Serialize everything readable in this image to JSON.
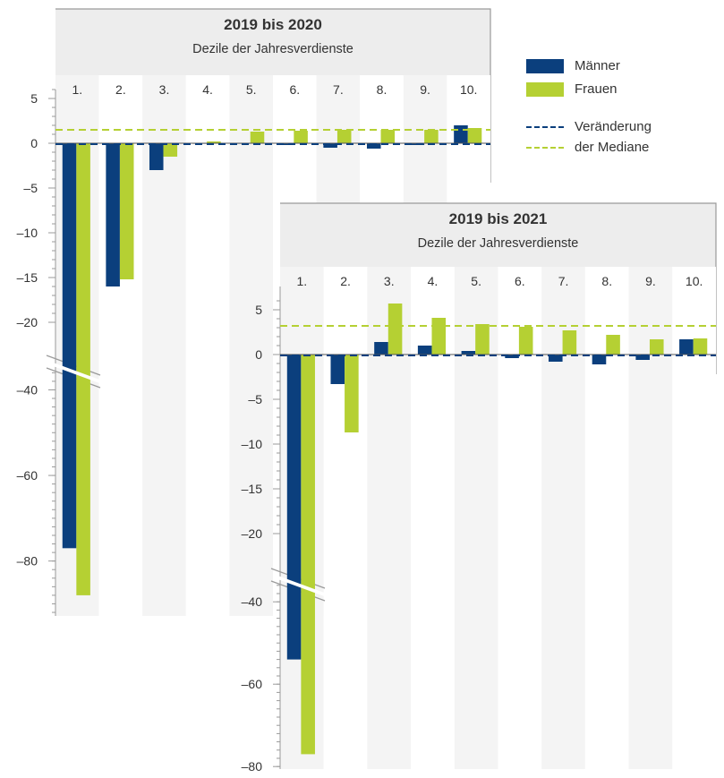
{
  "legend": {
    "men": "Männer",
    "women": "Frauen",
    "median_line1": "Veränderung",
    "median_line2": "der Mediane"
  },
  "colors": {
    "men": "#0b3f7d",
    "women": "#b5d033",
    "median_men": "#0b3f7d",
    "median_women": "#b5d033",
    "panel_bg": "#ededed",
    "band": "#f4f4f4"
  },
  "chart_data": [
    {
      "type": "bar",
      "title": "2019 bis 2020",
      "subtitle": "Dezile der Jahresverdienste",
      "categories": [
        "1.",
        "2.",
        "3.",
        "4.",
        "5.",
        "6.",
        "7.",
        "8.",
        "9.",
        "10."
      ],
      "series": [
        {
          "name": "Männer",
          "values": [
            -77,
            -16,
            -3,
            0,
            0,
            -0.2,
            -0.5,
            -0.6,
            -0.2,
            2.0
          ]
        },
        {
          "name": "Frauen",
          "values": [
            -88,
            -15.2,
            -1.5,
            0.2,
            1.3,
            1.4,
            1.5,
            1.5,
            1.5,
            1.7
          ]
        }
      ],
      "median_change": {
        "Männer": 0,
        "Frauen": 1.5
      },
      "yticks": [
        "5",
        "0",
        "–5",
        "–10",
        "–15",
        "–20",
        "–40",
        "–60",
        "–80"
      ],
      "ylim": [
        -90,
        8
      ],
      "axis_break": [
        -22,
        -36
      ]
    },
    {
      "type": "bar",
      "title": "2019 bis 2021",
      "subtitle": "Dezile der Jahresverdienste",
      "categories": [
        "1.",
        "2.",
        "3.",
        "4.",
        "5.",
        "6.",
        "7.",
        "8.",
        "9.",
        "10."
      ],
      "series": [
        {
          "name": "Männer",
          "values": [
            -54,
            -3.3,
            1.4,
            1.0,
            0.4,
            -0.4,
            -0.8,
            -1.1,
            -0.6,
            1.7
          ]
        },
        {
          "name": "Frauen",
          "values": [
            -77,
            -8.7,
            5.7,
            4.1,
            3.4,
            3.1,
            2.7,
            2.2,
            1.7,
            1.8
          ]
        }
      ],
      "median_change": {
        "Männer": 0,
        "Frauen": 3.2
      },
      "yticks": [
        "5",
        "0",
        "–5",
        "–10",
        "–15",
        "–20",
        "–40",
        "–60",
        "–80"
      ],
      "ylim": [
        -80,
        8
      ],
      "axis_break": [
        -22,
        -36
      ]
    }
  ]
}
